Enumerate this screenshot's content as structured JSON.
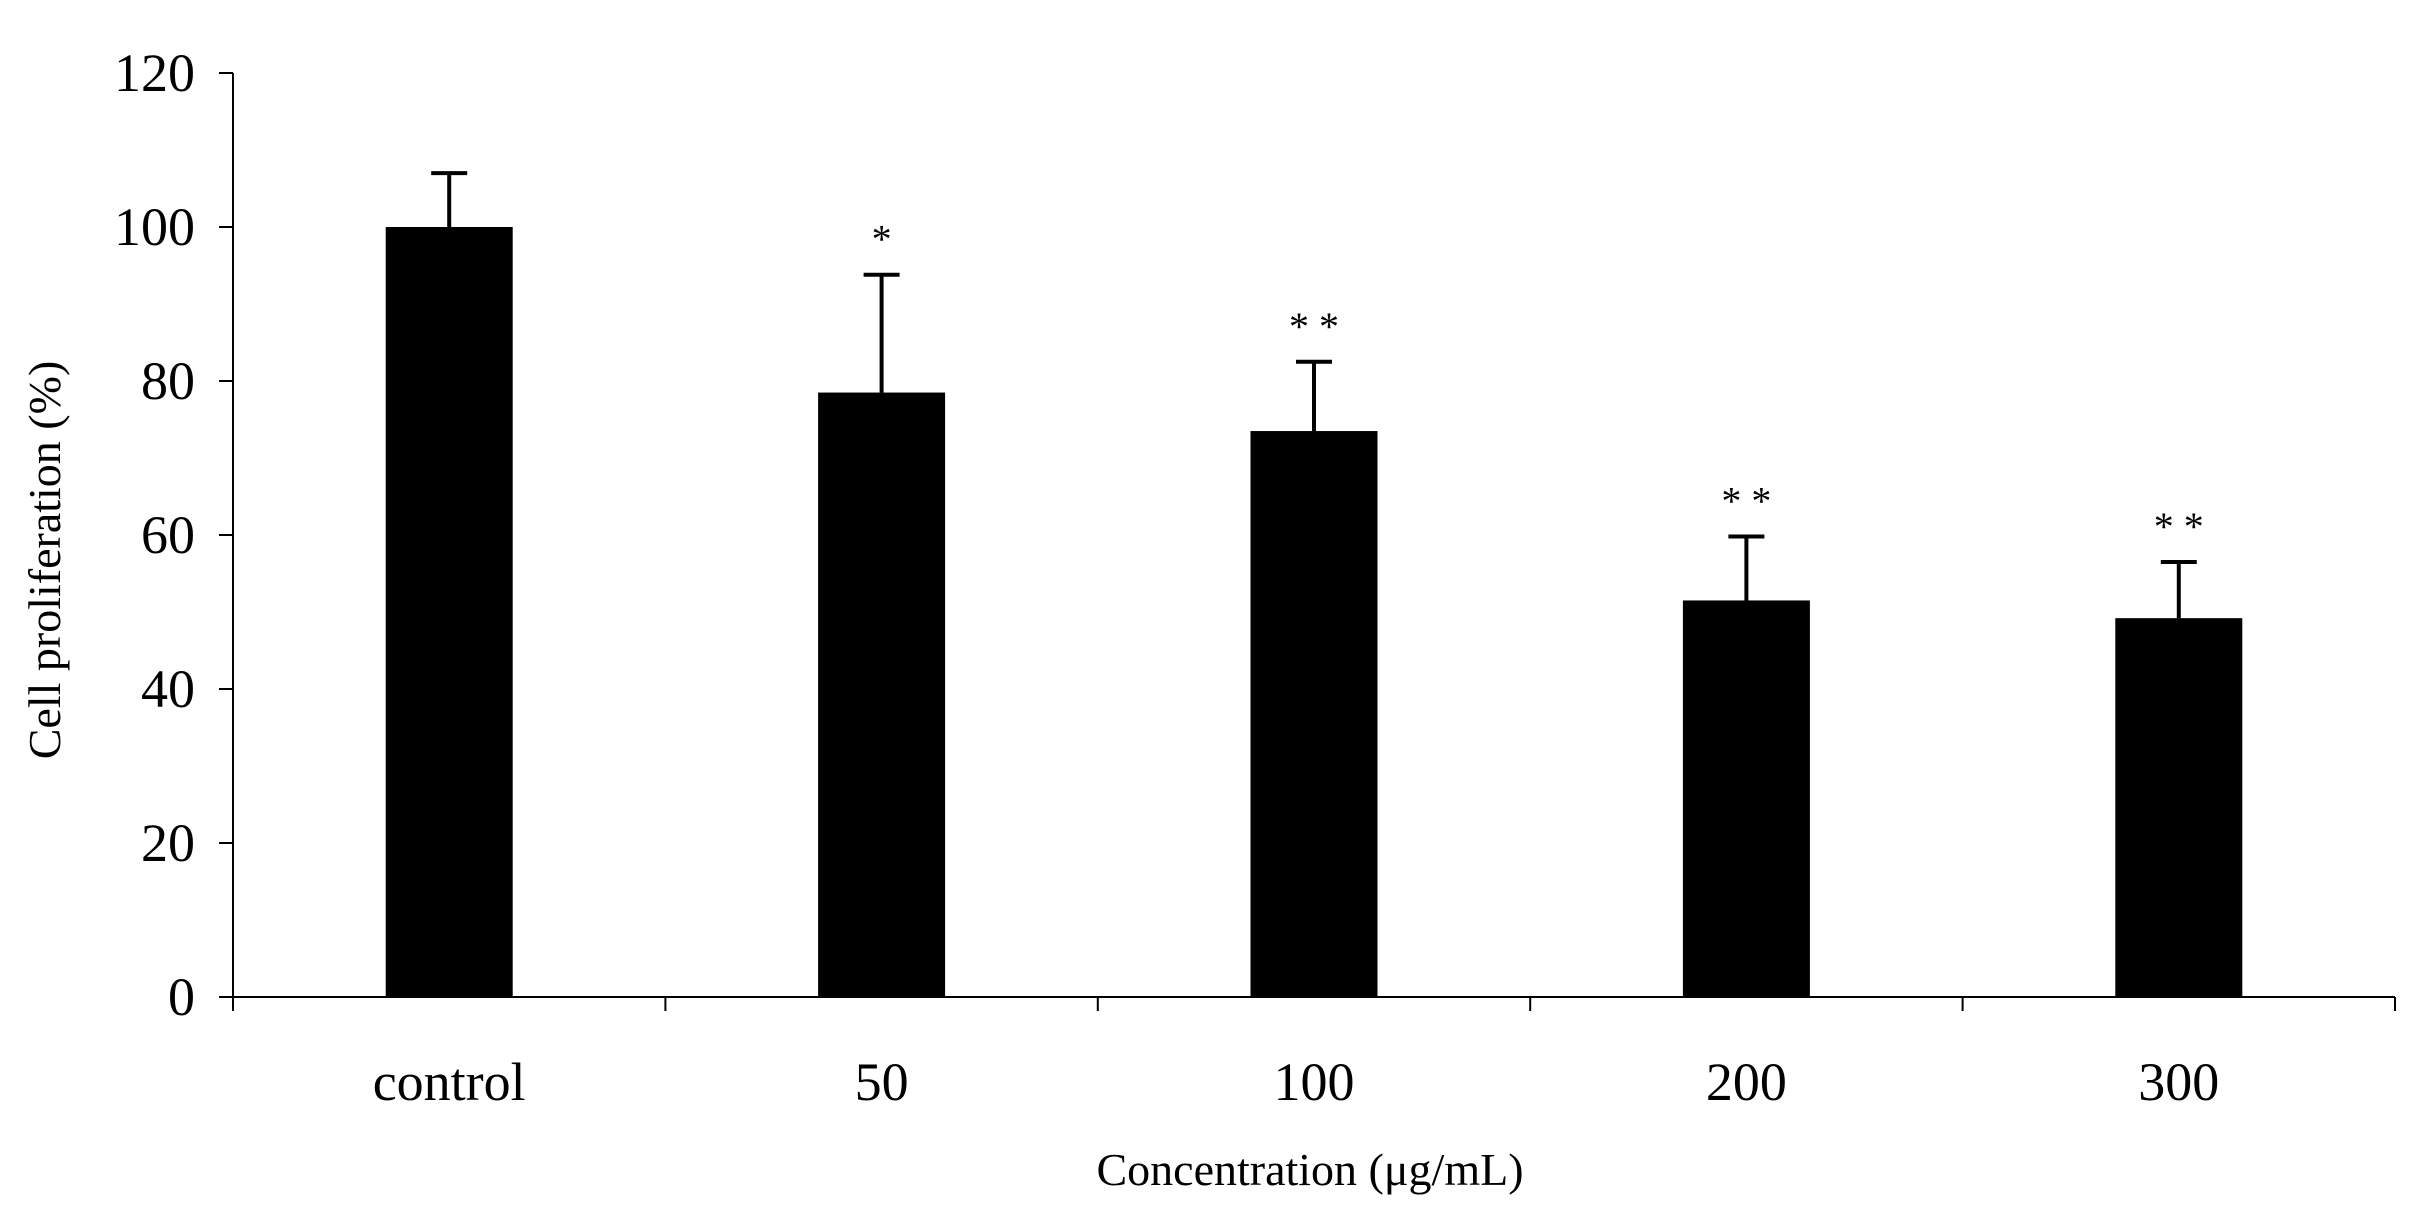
{
  "chart_data": {
    "type": "bar",
    "categories": [
      "control",
      "50",
      "100",
      "200",
      "300"
    ],
    "values": [
      100,
      78.5,
      73.5,
      51.5,
      49.2
    ],
    "error_upper": [
      107,
      93.8,
      82.5,
      59.8,
      56.5
    ],
    "significance": [
      "",
      "*",
      "**",
      "**",
      "**"
    ],
    "xlabel": "Concentration (μg/mL)",
    "ylabel": "Cell proliferation (%)",
    "ylim": [
      0,
      120
    ],
    "yticks": [
      0,
      20,
      40,
      60,
      80,
      100,
      120
    ],
    "grid": false,
    "legend": "none",
    "bar_color": "#000000",
    "axis_color": "#000000"
  }
}
